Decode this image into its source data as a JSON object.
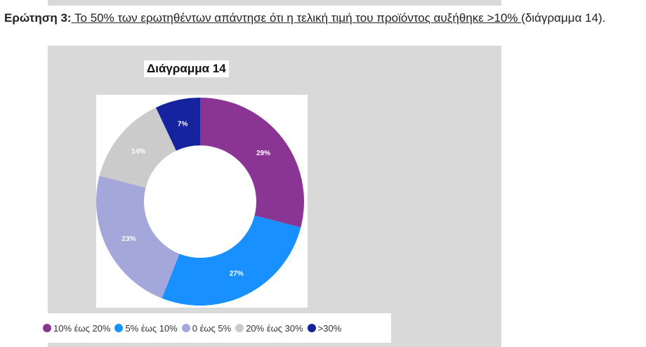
{
  "question": {
    "label": "Ερώτηση 3:",
    "underlined": " Το 50% των ερωτηθέντων απάντησε ότι η τελική τιμή του προϊόντος αυξήθηκε >10% ",
    "rest": "(διάγραμμα 14)."
  },
  "chart_data": {
    "type": "pie",
    "donut": true,
    "title": "Διάγραμμα 14",
    "categories": [
      "10% έως 20%",
      "5% έως 10%",
      "0 έως 5%",
      "20% έως 30%",
      ">30%"
    ],
    "values": [
      29,
      27,
      23,
      14,
      7
    ],
    "labels": [
      "29%",
      "27%",
      "23%",
      "14%",
      "7%"
    ],
    "colors": [
      "#8a3594",
      "#1890ff",
      "#a3a7d9",
      "#cbcbcb",
      "#15239e"
    ],
    "legend": "bottom"
  }
}
